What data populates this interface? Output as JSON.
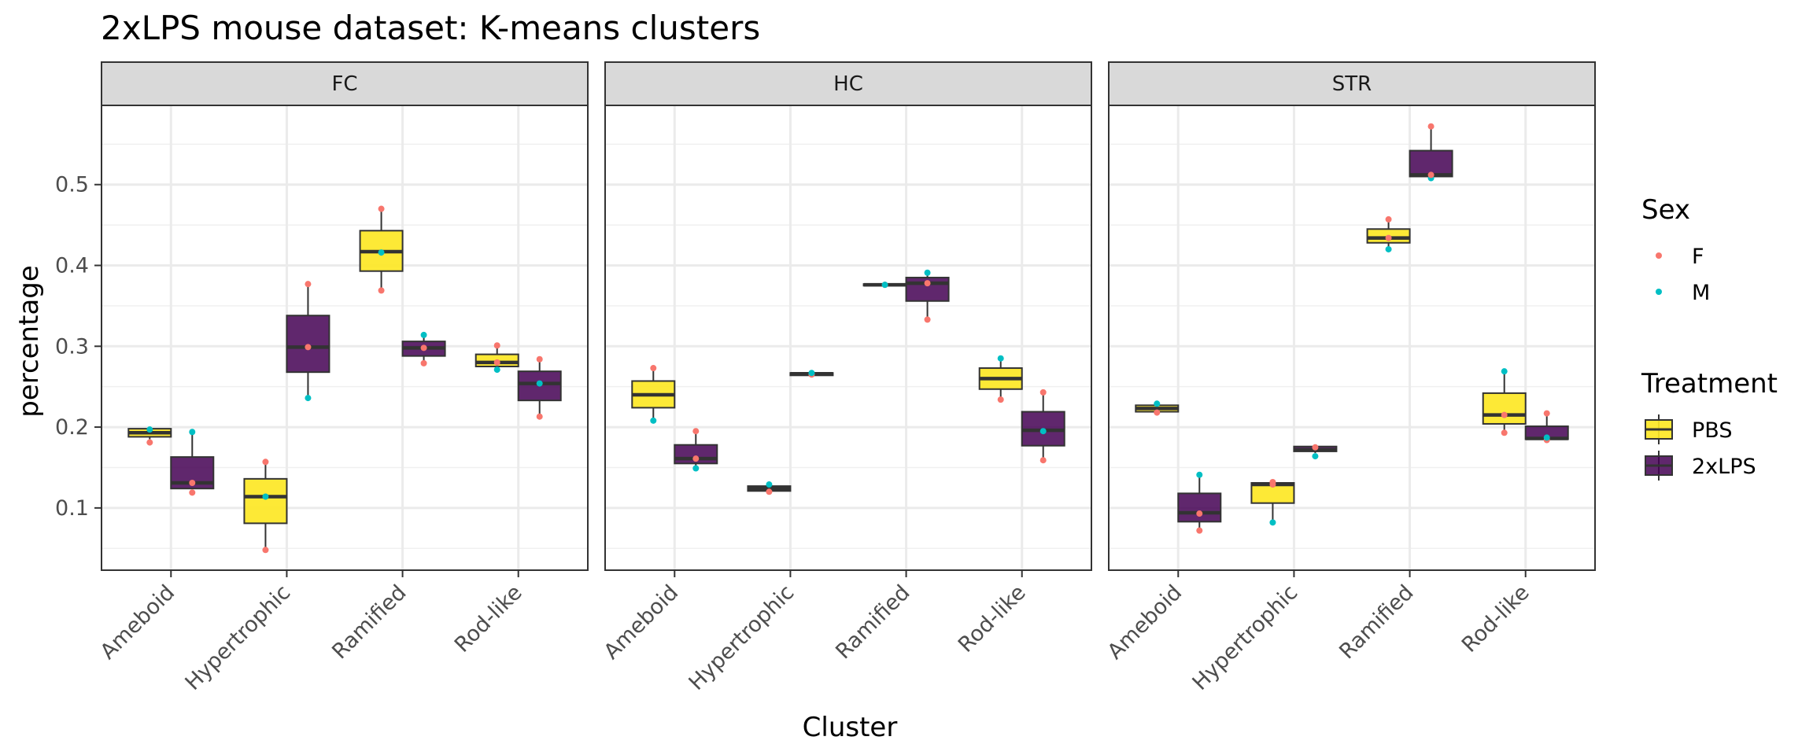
{
  "chart_data": {
    "type": "box",
    "title": "2xLPS mouse dataset: K-means clusters",
    "xlabel": "Cluster",
    "ylabel": "percentage",
    "facets": [
      "FC",
      "HC",
      "STR"
    ],
    "categories": [
      "Ameboid",
      "Hypertrophic",
      "Ramified",
      "Rod-like"
    ],
    "yticks": [
      0.1,
      0.2,
      0.3,
      0.4,
      0.5
    ],
    "ylim": [
      0.023,
      0.598
    ],
    "grid": true,
    "legend_placement": "right",
    "treatment_legend": {
      "title": "Treatment",
      "entries": [
        {
          "name": "PBS",
          "color": "#fde725"
        },
        {
          "name": "2xLPS",
          "color": "#440154"
        }
      ]
    },
    "sex_legend": {
      "title": "Sex",
      "entries": [
        {
          "name": "F",
          "color": "#f8766d"
        },
        {
          "name": "M",
          "color": "#00bfc4"
        }
      ]
    },
    "boxes": {
      "FC": {
        "Ameboid": {
          "PBS": {
            "min": 0.185,
            "q1": 0.188,
            "median": 0.193,
            "q3": 0.198,
            "max": 0.198,
            "points": [
              {
                "sex": "F",
                "y": 0.181
              },
              {
                "sex": "M",
                "y": 0.197
              }
            ]
          },
          "2xLPS": {
            "min": 0.124,
            "q1": 0.124,
            "median": 0.131,
            "q3": 0.163,
            "max": 0.195,
            "points": [
              {
                "sex": "F",
                "y": 0.119
              },
              {
                "sex": "F",
                "y": 0.131
              },
              {
                "sex": "M",
                "y": 0.194
              }
            ]
          }
        },
        "Hypertrophic": {
          "PBS": {
            "min": 0.048,
            "q1": 0.081,
            "median": 0.114,
            "q3": 0.136,
            "max": 0.157,
            "points": [
              {
                "sex": "F",
                "y": 0.048
              },
              {
                "sex": "M",
                "y": 0.114
              },
              {
                "sex": "F",
                "y": 0.157
              }
            ]
          },
          "2xLPS": {
            "min": 0.238,
            "q1": 0.268,
            "median": 0.299,
            "q3": 0.338,
            "max": 0.377,
            "points": [
              {
                "sex": "M",
                "y": 0.236
              },
              {
                "sex": "F",
                "y": 0.299
              },
              {
                "sex": "F",
                "y": 0.377
              }
            ]
          }
        },
        "Ramified": {
          "PBS": {
            "min": 0.369,
            "q1": 0.393,
            "median": 0.417,
            "q3": 0.443,
            "max": 0.47,
            "points": [
              {
                "sex": "F",
                "y": 0.369
              },
              {
                "sex": "M",
                "y": 0.416
              },
              {
                "sex": "F",
                "y": 0.47
              }
            ]
          },
          "2xLPS": {
            "min": 0.279,
            "q1": 0.288,
            "median": 0.298,
            "q3": 0.306,
            "max": 0.314,
            "points": [
              {
                "sex": "F",
                "y": 0.279
              },
              {
                "sex": "F",
                "y": 0.298
              },
              {
                "sex": "M",
                "y": 0.314
              }
            ]
          }
        },
        "Rod-like": {
          "PBS": {
            "min": 0.272,
            "q1": 0.275,
            "median": 0.28,
            "q3": 0.29,
            "max": 0.3,
            "points": [
              {
                "sex": "M",
                "y": 0.271
              },
              {
                "sex": "F",
                "y": 0.28
              },
              {
                "sex": "F",
                "y": 0.301
              }
            ]
          },
          "2xLPS": {
            "min": 0.214,
            "q1": 0.233,
            "median": 0.254,
            "q3": 0.269,
            "max": 0.284,
            "points": [
              {
                "sex": "F",
                "y": 0.213
              },
              {
                "sex": "M",
                "y": 0.254
              },
              {
                "sex": "F",
                "y": 0.284
              }
            ]
          }
        }
      },
      "HC": {
        "Ameboid": {
          "PBS": {
            "min": 0.208,
            "q1": 0.224,
            "median": 0.24,
            "q3": 0.257,
            "max": 0.273,
            "points": [
              {
                "sex": "M",
                "y": 0.208
              },
              {
                "sex": "F",
                "y": 0.273
              }
            ]
          },
          "2xLPS": {
            "min": 0.149,
            "q1": 0.155,
            "median": 0.161,
            "q3": 0.178,
            "max": 0.195,
            "points": [
              {
                "sex": "M",
                "y": 0.149
              },
              {
                "sex": "F",
                "y": 0.161
              },
              {
                "sex": "F",
                "y": 0.195
              }
            ]
          }
        },
        "Hypertrophic": {
          "PBS": {
            "min": 0.121,
            "q1": 0.121,
            "median": 0.124,
            "q3": 0.127,
            "max": 0.127,
            "points": [
              {
                "sex": "F",
                "y": 0.12
              },
              {
                "sex": "M",
                "y": 0.129
              }
            ]
          },
          "2xLPS": {
            "min": 0.264,
            "q1": 0.264,
            "median": 0.266,
            "q3": 0.267,
            "max": 0.267,
            "points": [
              {
                "sex": "F",
                "y": 0.265
              },
              {
                "sex": "M",
                "y": 0.267
              }
            ]
          }
        },
        "Ramified": {
          "PBS": {
            "min": 0.375,
            "q1": 0.375,
            "median": 0.376,
            "q3": 0.377,
            "max": 0.377,
            "points": [
              {
                "sex": "F",
                "y": 0.376
              },
              {
                "sex": "M",
                "y": 0.376
              }
            ]
          },
          "2xLPS": {
            "min": 0.334,
            "q1": 0.356,
            "median": 0.378,
            "q3": 0.385,
            "max": 0.391,
            "points": [
              {
                "sex": "F",
                "y": 0.333
              },
              {
                "sex": "F",
                "y": 0.378
              },
              {
                "sex": "M",
                "y": 0.391
              }
            ]
          }
        },
        "Rod-like": {
          "PBS": {
            "min": 0.234,
            "q1": 0.247,
            "median": 0.26,
            "q3": 0.273,
            "max": 0.285,
            "points": [
              {
                "sex": "F",
                "y": 0.234
              },
              {
                "sex": "M",
                "y": 0.285
              }
            ]
          },
          "2xLPS": {
            "min": 0.16,
            "q1": 0.177,
            "median": 0.196,
            "q3": 0.219,
            "max": 0.242,
            "points": [
              {
                "sex": "F",
                "y": 0.159
              },
              {
                "sex": "M",
                "y": 0.195
              },
              {
                "sex": "F",
                "y": 0.243
              }
            ]
          }
        }
      },
      "STR": {
        "Ameboid": {
          "PBS": {
            "min": 0.219,
            "q1": 0.219,
            "median": 0.223,
            "q3": 0.227,
            "max": 0.227,
            "points": [
              {
                "sex": "F",
                "y": 0.218
              },
              {
                "sex": "M",
                "y": 0.229
              }
            ]
          },
          "2xLPS": {
            "min": 0.073,
            "q1": 0.083,
            "median": 0.094,
            "q3": 0.118,
            "max": 0.141,
            "points": [
              {
                "sex": "F",
                "y": 0.072
              },
              {
                "sex": "F",
                "y": 0.093
              },
              {
                "sex": "M",
                "y": 0.141
              }
            ]
          }
        },
        "Hypertrophic": {
          "PBS": {
            "min": 0.083,
            "q1": 0.106,
            "median": 0.129,
            "q3": 0.131,
            "max": 0.132,
            "points": [
              {
                "sex": "M",
                "y": 0.082
              },
              {
                "sex": "F",
                "y": 0.129
              },
              {
                "sex": "F",
                "y": 0.132
              }
            ]
          },
          "2xLPS": {
            "min": 0.168,
            "q1": 0.17,
            "median": 0.172,
            "q3": 0.176,
            "max": 0.176,
            "points": [
              {
                "sex": "M",
                "y": 0.164
              },
              {
                "sex": "F",
                "y": 0.175
              }
            ]
          }
        },
        "Ramified": {
          "PBS": {
            "min": 0.421,
            "q1": 0.428,
            "median": 0.434,
            "q3": 0.445,
            "max": 0.456,
            "points": [
              {
                "sex": "M",
                "y": 0.42
              },
              {
                "sex": "F",
                "y": 0.434
              },
              {
                "sex": "F",
                "y": 0.457
              }
            ]
          },
          "2xLPS": {
            "min": 0.509,
            "q1": 0.51,
            "median": 0.512,
            "q3": 0.542,
            "max": 0.572,
            "points": [
              {
                "sex": "M",
                "y": 0.508
              },
              {
                "sex": "F",
                "y": 0.512
              },
              {
                "sex": "F",
                "y": 0.572
              }
            ]
          }
        },
        "Rod-like": {
          "PBS": {
            "min": 0.193,
            "q1": 0.204,
            "median": 0.215,
            "q3": 0.242,
            "max": 0.268,
            "points": [
              {
                "sex": "F",
                "y": 0.193
              },
              {
                "sex": "F",
                "y": 0.215
              },
              {
                "sex": "M",
                "y": 0.269
              }
            ]
          },
          "2xLPS": {
            "min": 0.184,
            "q1": 0.185,
            "median": 0.186,
            "q3": 0.201,
            "max": 0.217,
            "points": [
              {
                "sex": "F",
                "y": 0.184
              },
              {
                "sex": "M",
                "y": 0.187
              },
              {
                "sex": "F",
                "y": 0.217
              }
            ]
          }
        }
      }
    }
  }
}
